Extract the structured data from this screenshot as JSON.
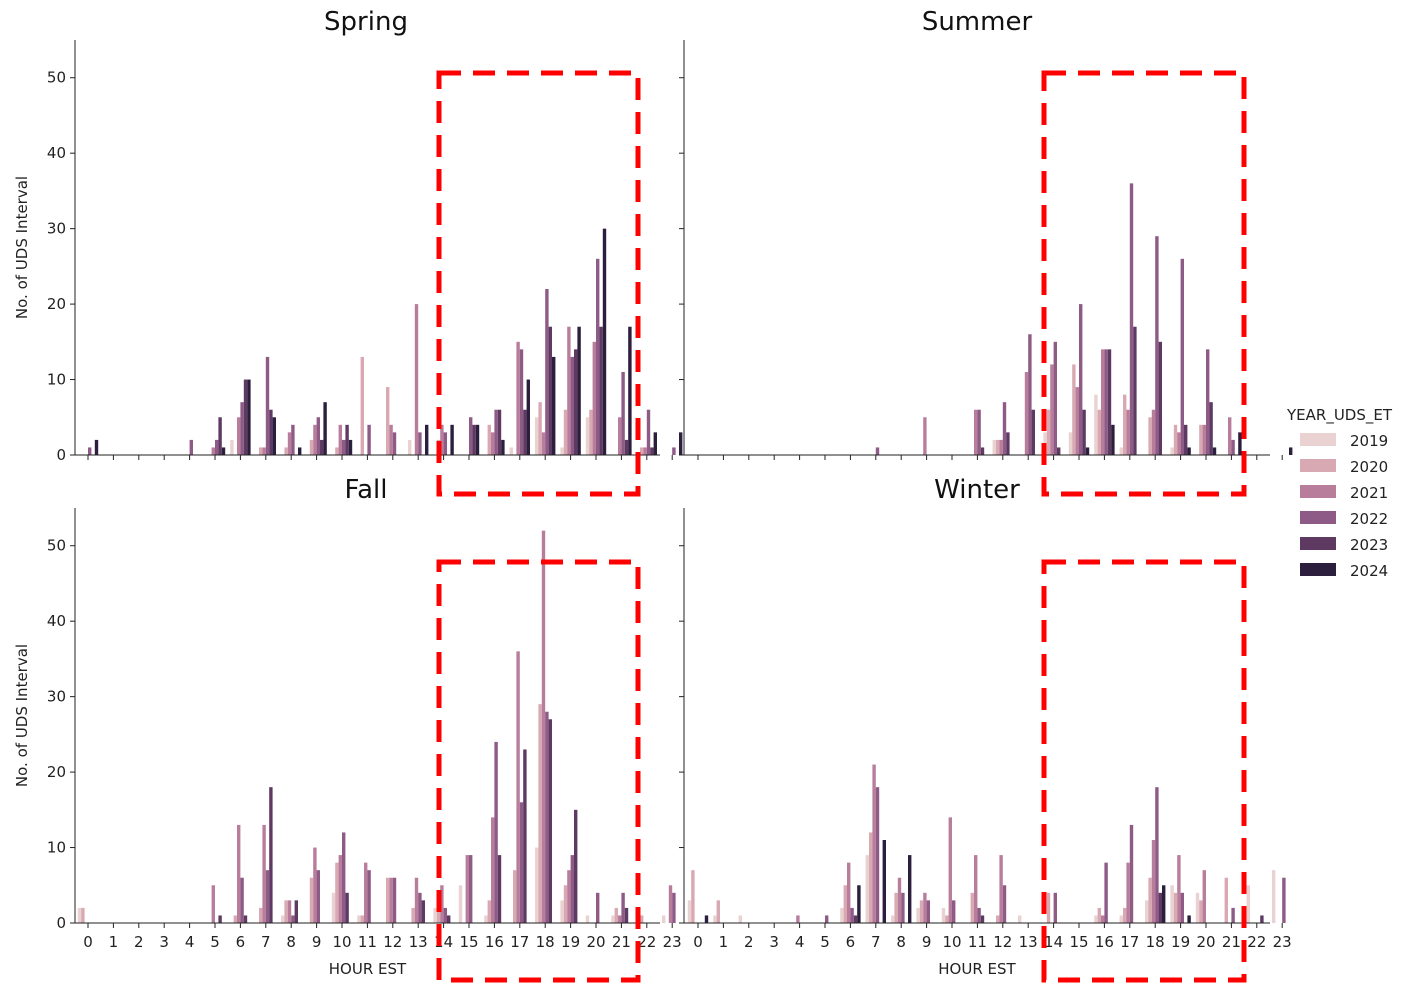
{
  "chart_data": {
    "type": "bar",
    "ylabel": "No. of UDS Interval",
    "xlabel": "HOUR EST",
    "ylim": [
      0,
      55
    ],
    "yticks": [
      0,
      10,
      20,
      30,
      40,
      50
    ],
    "categories": [
      "0",
      "1",
      "2",
      "3",
      "4",
      "5",
      "6",
      "7",
      "8",
      "9",
      "10",
      "11",
      "12",
      "13",
      "14",
      "15",
      "16",
      "17",
      "18",
      "19",
      "20",
      "21",
      "22",
      "23"
    ],
    "legend": {
      "title": "YEAR_UDS_ET",
      "placement": "right",
      "entries": [
        {
          "label": "2019",
          "color": "#ebd2d2"
        },
        {
          "label": "2020",
          "color": "#d8a9b2"
        },
        {
          "label": "2021",
          "color": "#b97d9c"
        },
        {
          "label": "2022",
          "color": "#8e5a86"
        },
        {
          "label": "2023",
          "color": "#5e3a63"
        },
        {
          "label": "2024",
          "color": "#2c1e3d"
        }
      ]
    },
    "highlight": {
      "label": "dashed red box",
      "from_hour": 15,
      "to_hour": 22,
      "color": "#ff0000"
    },
    "panels": [
      {
        "title": "Spring",
        "series": [
          {
            "name": "2019",
            "values": [
              0,
              0,
              0,
              0,
              0,
              0,
              2,
              0,
              0,
              0,
              0,
              0,
              0,
              2,
              0,
              0,
              0,
              1,
              5,
              1,
              5,
              0,
              0,
              0
            ]
          },
          {
            "name": "2020",
            "values": [
              0,
              0,
              0,
              0,
              0,
              0,
              0,
              1,
              1,
              2,
              1,
              13,
              9,
              0,
              2,
              0,
              4,
              0,
              7,
              6,
              6,
              0,
              1,
              0
            ]
          },
          {
            "name": "2021",
            "values": [
              0,
              0,
              0,
              0,
              0,
              1,
              5,
              1,
              3,
              4,
              4,
              0,
              4,
              20,
              4,
              0,
              3,
              15,
              3,
              17,
              15,
              5,
              1,
              0
            ]
          },
          {
            "name": "2022",
            "values": [
              1,
              0,
              0,
              0,
              2,
              2,
              7,
              13,
              4,
              5,
              2,
              4,
              3,
              3,
              3,
              5,
              6,
              14,
              22,
              13,
              26,
              11,
              6,
              1
            ]
          },
          {
            "name": "2023",
            "values": [
              0,
              0,
              0,
              0,
              0,
              5,
              10,
              6,
              0,
              2,
              4,
              0,
              0,
              0,
              0,
              4,
              6,
              6,
              17,
              14,
              17,
              2,
              1,
              0
            ]
          },
          {
            "name": "2024",
            "values": [
              2,
              0,
              0,
              0,
              0,
              1,
              10,
              5,
              1,
              7,
              2,
              0,
              0,
              4,
              4,
              4,
              2,
              10,
              13,
              17,
              30,
              17,
              3,
              3
            ]
          }
        ]
      },
      {
        "title": "Summer",
        "series": [
          {
            "name": "2019",
            "values": [
              0,
              0,
              0,
              0,
              0,
              0,
              0,
              0,
              0,
              0,
              0,
              0,
              2,
              0,
              3,
              3,
              8,
              1,
              0,
              1,
              0,
              0,
              0,
              0
            ]
          },
          {
            "name": "2020",
            "values": [
              0,
              0,
              0,
              0,
              0,
              0,
              0,
              0,
              0,
              0,
              0,
              0,
              2,
              0,
              6,
              12,
              6,
              8,
              5,
              4,
              4,
              0,
              0,
              0
            ]
          },
          {
            "name": "2021",
            "values": [
              0,
              0,
              0,
              0,
              0,
              0,
              0,
              0,
              0,
              5,
              0,
              6,
              2,
              11,
              12,
              9,
              14,
              6,
              6,
              3,
              4,
              5,
              0,
              0
            ]
          },
          {
            "name": "2022",
            "values": [
              0,
              0,
              0,
              0,
              0,
              0,
              0,
              1,
              0,
              0,
              0,
              6,
              7,
              16,
              15,
              20,
              14,
              36,
              29,
              26,
              14,
              2,
              0,
              0
            ]
          },
          {
            "name": "2023",
            "values": [
              0,
              0,
              0,
              0,
              0,
              0,
              0,
              0,
              0,
              0,
              0,
              1,
              3,
              6,
              1,
              6,
              14,
              17,
              15,
              4,
              7,
              0,
              0,
              0
            ]
          },
          {
            "name": "2024",
            "values": [
              0,
              0,
              0,
              0,
              0,
              0,
              0,
              0,
              0,
              0,
              0,
              0,
              0,
              0,
              0,
              1,
              4,
              0,
              0,
              1,
              1,
              3,
              0,
              1
            ]
          }
        ]
      },
      {
        "title": "Fall",
        "series": [
          {
            "name": "2019",
            "values": [
              2,
              0,
              0,
              0,
              0,
              0,
              0,
              0,
              1,
              0,
              4,
              1,
              0,
              0,
              2,
              5,
              1,
              0,
              10,
              3,
              1,
              1,
              0,
              1
            ]
          },
          {
            "name": "2020",
            "values": [
              2,
              0,
              0,
              0,
              0,
              0,
              1,
              2,
              3,
              6,
              8,
              1,
              6,
              2,
              3,
              0,
              3,
              7,
              29,
              5,
              0,
              2,
              1,
              0
            ]
          },
          {
            "name": "2021",
            "values": [
              0,
              0,
              0,
              0,
              0,
              5,
              13,
              13,
              3,
              10,
              9,
              8,
              6,
              6,
              5,
              9,
              14,
              36,
              52,
              7,
              0,
              1,
              0,
              5
            ]
          },
          {
            "name": "2022",
            "values": [
              0,
              0,
              0,
              0,
              0,
              0,
              6,
              7,
              1,
              7,
              12,
              7,
              6,
              4,
              2,
              9,
              24,
              16,
              28,
              9,
              4,
              4,
              0,
              4
            ]
          },
          {
            "name": "2023",
            "values": [
              0,
              0,
              0,
              0,
              0,
              1,
              1,
              18,
              3,
              0,
              4,
              0,
              0,
              3,
              1,
              0,
              9,
              23,
              27,
              15,
              0,
              2,
              0,
              0
            ]
          },
          {
            "name": "2024",
            "values": [
              0,
              0,
              0,
              0,
              0,
              0,
              0,
              0,
              0,
              0,
              0,
              0,
              0,
              0,
              0,
              0,
              0,
              0,
              0,
              0,
              0,
              0,
              0,
              0
            ]
          }
        ]
      },
      {
        "title": "Winter",
        "series": [
          {
            "name": "2019",
            "values": [
              3,
              1,
              1,
              0,
              0,
              0,
              2,
              9,
              1,
              2,
              2,
              0,
              0,
              1,
              0,
              0,
              1,
              1,
              3,
              5,
              4,
              0,
              5,
              7
            ]
          },
          {
            "name": "2020",
            "values": [
              7,
              3,
              0,
              0,
              0,
              0,
              5,
              12,
              4,
              3,
              1,
              4,
              1,
              0,
              4,
              0,
              2,
              2,
              6,
              4,
              3,
              6,
              0,
              0
            ]
          },
          {
            "name": "2021",
            "values": [
              0,
              0,
              0,
              0,
              1,
              0,
              8,
              21,
              6,
              4,
              14,
              9,
              9,
              0,
              0,
              0,
              1,
              8,
              11,
              9,
              7,
              0,
              0,
              0
            ]
          },
          {
            "name": "2022",
            "values": [
              0,
              0,
              0,
              0,
              0,
              1,
              2,
              18,
              4,
              3,
              3,
              2,
              5,
              0,
              4,
              0,
              8,
              13,
              18,
              4,
              0,
              2,
              0,
              6
            ]
          },
          {
            "name": "2023",
            "values": [
              0,
              0,
              0,
              0,
              0,
              0,
              1,
              0,
              0,
              0,
              0,
              1,
              0,
              0,
              0,
              0,
              0,
              0,
              4,
              0,
              0,
              0,
              1,
              0
            ]
          },
          {
            "name": "2024",
            "values": [
              1,
              0,
              0,
              0,
              0,
              0,
              5,
              11,
              9,
              0,
              0,
              0,
              0,
              0,
              0,
              0,
              0,
              0,
              5,
              1,
              0,
              0,
              0,
              0
            ]
          }
        ]
      }
    ]
  }
}
